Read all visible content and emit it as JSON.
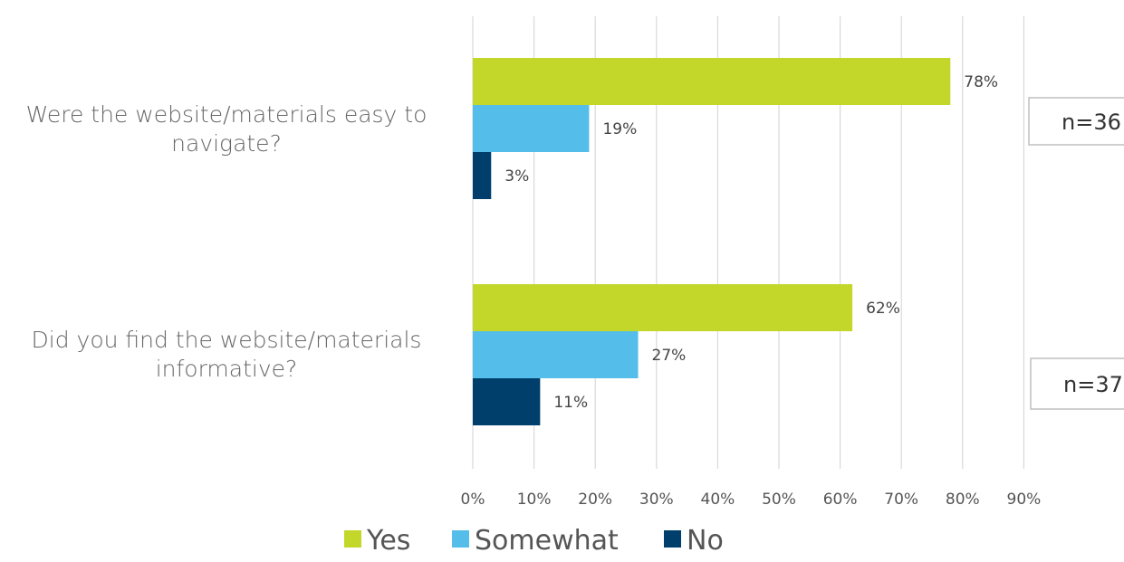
{
  "chart_data": {
    "type": "bar",
    "orientation": "horizontal",
    "categories": [
      [
        "Were the website/materials easy to",
        "navigate?"
      ],
      [
        "Did you find the website/materials",
        "informative?"
      ]
    ],
    "series": [
      {
        "name": "Yes",
        "color": "#c3d72b",
        "values": [
          78,
          62
        ],
        "labels": [
          "78%",
          "62%"
        ]
      },
      {
        "name": "Somewhat",
        "color": "#55bde9",
        "values": [
          19,
          27
        ],
        "labels": [
          "19%",
          "27%"
        ]
      },
      {
        "name": "No",
        "color": "#003f6b",
        "values": [
          3,
          11
        ],
        "labels": [
          "3%",
          "11%"
        ]
      }
    ],
    "x_ticks": [
      "0%",
      "10%",
      "20%",
      "30%",
      "40%",
      "50%",
      "60%",
      "70%",
      "80%",
      "90%"
    ],
    "xlim": [
      0,
      90
    ],
    "grid": true,
    "legend_position": "bottom",
    "annotations": [
      "n=36",
      "n=37"
    ]
  }
}
